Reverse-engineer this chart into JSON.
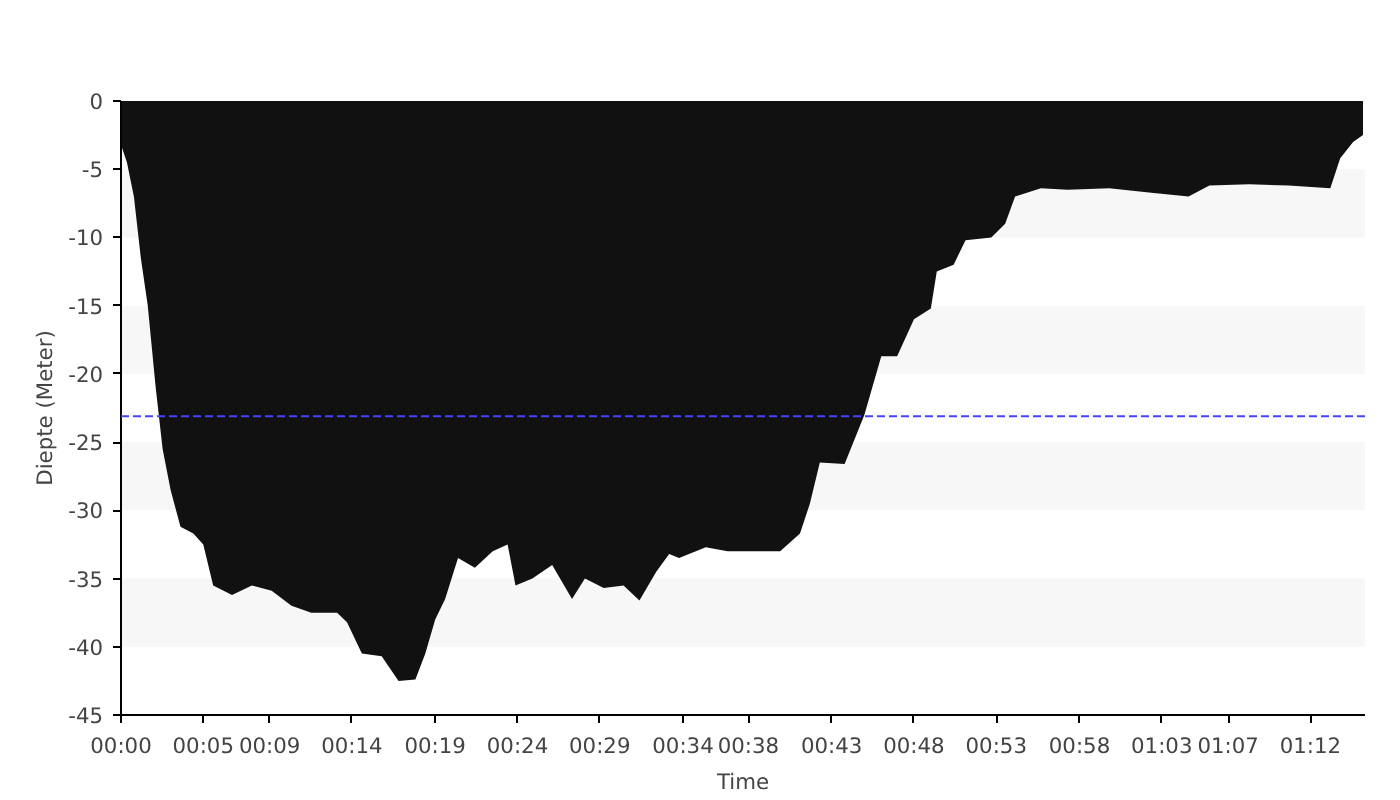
{
  "chart_data": {
    "type": "area",
    "xlabel": "Time",
    "ylabel": "Diepte (Meter)",
    "x": [
      0,
      0,
      0.006,
      0.013,
      0.02,
      0.027,
      0.035,
      0.042,
      0.05,
      0.06,
      0.073,
      0.083,
      0.093,
      0.112,
      0.132,
      0.152,
      0.172,
      0.192,
      0.218,
      0.228,
      0.243,
      0.263,
      0.28,
      0.297,
      0.307,
      0.317,
      0.327,
      0.34,
      0.357,
      0.375,
      0.39,
      0.398,
      0.415,
      0.435,
      0.455,
      0.468,
      0.487,
      0.507,
      0.523,
      0.54,
      0.553,
      0.563,
      0.59,
      0.612,
      0.638,
      0.665,
      0.685,
      0.695,
      0.705,
      0.73,
      0.75,
      0.767,
      0.783,
      0.8,
      0.817,
      0.823,
      0.84,
      0.852,
      0.878,
      0.892,
      0.902,
      0.928,
      0.955,
      0.997,
      1.037,
      1.077,
      1.098,
      1.138,
      1.178,
      1.22,
      1.23,
      1.243,
      1.253
    ],
    "series": [
      {
        "color": "#111111",
        "values": [
          0,
          -3.2,
          -4.5,
          -7,
          -11.5,
          -15,
          -21,
          -25.5,
          -28.5,
          -31.2,
          -31.7,
          -32.5,
          -35.5,
          -36.2,
          -35.5,
          -35.9,
          -37,
          -37.5,
          -37.5,
          -38.2,
          -40.5,
          -40.7,
          -42.5,
          -42.4,
          -40.5,
          -38,
          -36.5,
          -33.5,
          -34.2,
          -33,
          -32.5,
          -35.5,
          -35,
          -34,
          -36.5,
          -35,
          -35.7,
          -35.5,
          -36.6,
          -34.5,
          -33.2,
          -33.5,
          -32.7,
          -33,
          -33,
          -33,
          -31.7,
          -29.5,
          -26.5,
          -26.6,
          -23,
          -18.7,
          -18.7,
          -16,
          -15.2,
          -12.5,
          -12,
          -10.2,
          -10,
          -9,
          -7,
          -6.4,
          -6.5,
          -6.4,
          -6.7,
          -7,
          -6.2,
          -6.1,
          -6.2,
          -6.4,
          -4.2,
          -3,
          -2.5
        ]
      }
    ],
    "xlim": [
      0,
      1.255
    ],
    "xticks": [
      {
        "value": 0,
        "label": "00:00"
      },
      {
        "value": 0.083,
        "label": "00:05"
      },
      {
        "value": 0.15,
        "label": "00:09"
      },
      {
        "value": 0.233,
        "label": "00:14"
      },
      {
        "value": 0.317,
        "label": "00:19"
      },
      {
        "value": 0.4,
        "label": "00:24"
      },
      {
        "value": 0.483,
        "label": "00:29"
      },
      {
        "value": 0.567,
        "label": "00:34"
      },
      {
        "value": 0.633,
        "label": "00:38"
      },
      {
        "value": 0.717,
        "label": "00:43"
      },
      {
        "value": 0.8,
        "label": "00:48"
      },
      {
        "value": 0.883,
        "label": "00:53"
      },
      {
        "value": 0.967,
        "label": "00:58"
      },
      {
        "value": 1.05,
        "label": "01:03"
      },
      {
        "value": 1.117,
        "label": "01:07"
      },
      {
        "value": 1.2,
        "label": "01:12"
      }
    ],
    "ylim": [
      -45,
      0
    ],
    "yticks": [
      0,
      -5,
      -10,
      -15,
      -20,
      -25,
      -30,
      -35,
      -40,
      -45
    ],
    "ref_lines": [
      {
        "axis": "y",
        "value": -23.1,
        "color": "#4444ff",
        "line_style": "dashed"
      }
    ],
    "bands": [
      {
        "axis": "y",
        "from": -10,
        "to": -5,
        "color": "#f7f7f7"
      },
      {
        "axis": "y",
        "from": -20,
        "to": -15,
        "color": "#f7f7f7"
      },
      {
        "axis": "y",
        "from": -30,
        "to": -25,
        "color": "#f7f7f7"
      },
      {
        "axis": "y",
        "from": -40,
        "to": -35,
        "color": "#f7f7f7"
      }
    ]
  }
}
